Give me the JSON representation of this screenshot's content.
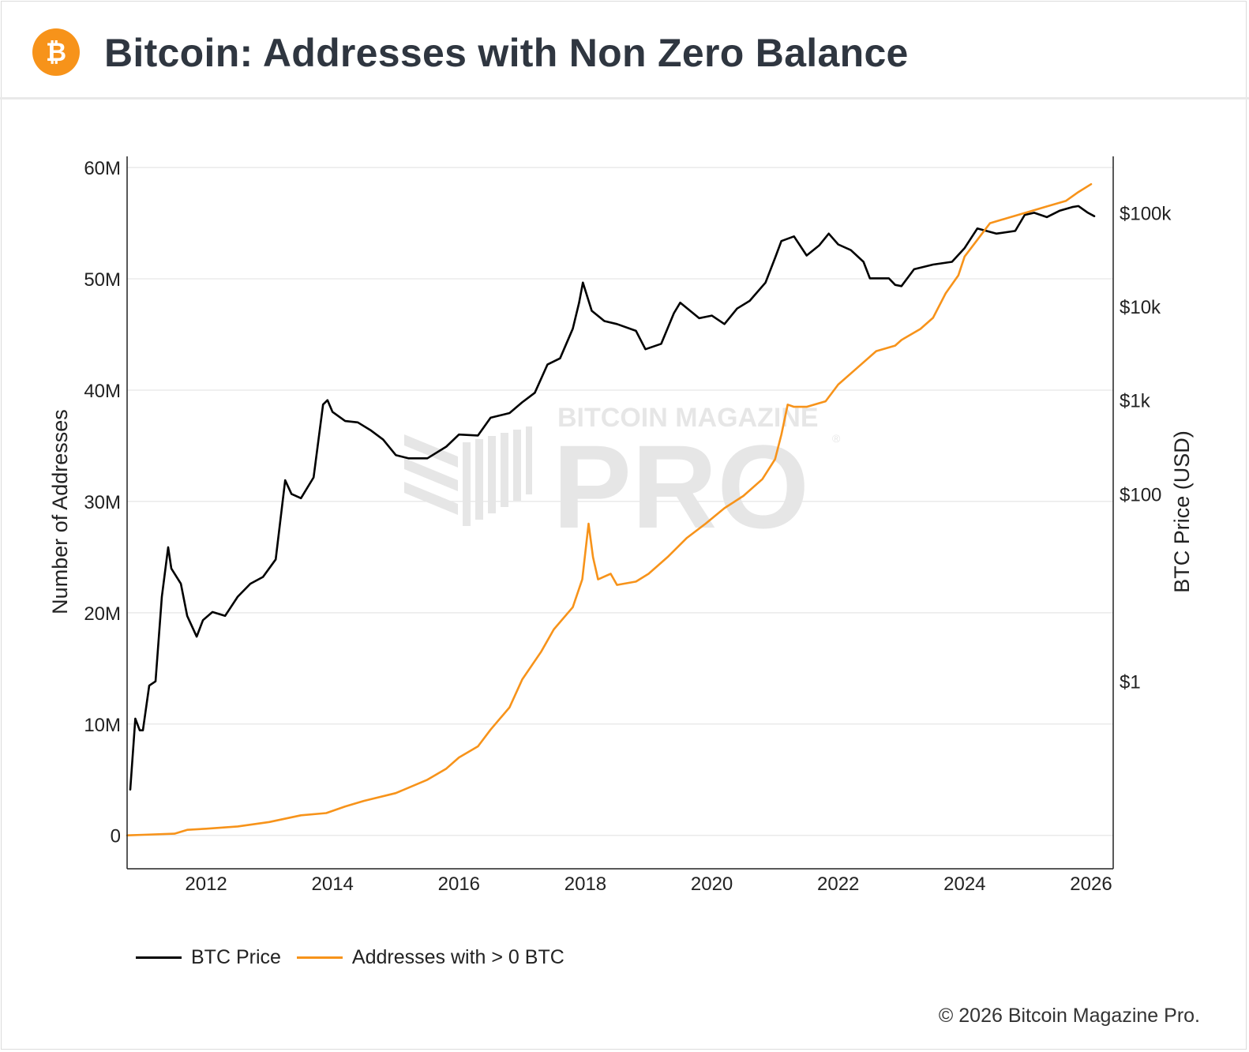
{
  "header": {
    "title": "Bitcoin: Addresses with Non Zero Balance",
    "logo_glyph": "₿",
    "logo_color": "#f7931a"
  },
  "watermark": {
    "line1": "BITCOIN MAGAZINE",
    "line2": "PRO",
    "registered": "®"
  },
  "footer": {
    "copyright": "© 2026 Bitcoin Magazine Pro."
  },
  "legend": [
    {
      "label": "BTC Price",
      "color": "#000000"
    },
    {
      "label": "Addresses with > 0 BTC",
      "color": "#f7931a"
    }
  ],
  "chart_data": {
    "type": "line",
    "title": "Bitcoin: Addresses with Non Zero Balance",
    "xlabel": "",
    "ylabel": "Number of Addresses",
    "y2label": "BTC Price (USD)",
    "x_ticks": [
      "2012",
      "2014",
      "2016",
      "2018",
      "2020",
      "2022",
      "2024",
      "2026"
    ],
    "x_range": [
      2010.75,
      2026.35
    ],
    "ylim": [
      -3000000,
      61000000
    ],
    "y_ticks": [
      0,
      10000000,
      20000000,
      30000000,
      40000000,
      50000000,
      60000000
    ],
    "y_tick_labels": [
      "0",
      "10M",
      "20M",
      "30M",
      "40M",
      "50M",
      "60M"
    ],
    "y2_scale": "log",
    "y2lim": [
      0.01,
      400000
    ],
    "y2_ticks": [
      1,
      100,
      1000,
      10000,
      100000
    ],
    "y2_tick_labels": [
      "$1",
      "$100",
      "$1k",
      "$10k",
      "$100k"
    ],
    "grid": true,
    "legend_position": "bottom-left",
    "series": [
      {
        "name": "BTC Price",
        "axis": "y2",
        "color": "#000000",
        "x": [
          2010.8,
          2010.88,
          2010.95,
          2011.0,
          2011.1,
          2011.2,
          2011.3,
          2011.4,
          2011.45,
          2011.6,
          2011.7,
          2011.85,
          2011.95,
          2012.1,
          2012.3,
          2012.5,
          2012.7,
          2012.9,
          2013.1,
          2013.25,
          2013.35,
          2013.5,
          2013.7,
          2013.85,
          2013.92,
          2014.0,
          2014.2,
          2014.4,
          2014.6,
          2014.8,
          2015.0,
          2015.2,
          2015.5,
          2015.8,
          2016.0,
          2016.3,
          2016.5,
          2016.8,
          2017.0,
          2017.2,
          2017.4,
          2017.6,
          2017.8,
          2017.9,
          2017.96,
          2018.1,
          2018.3,
          2018.5,
          2018.8,
          2018.95,
          2019.2,
          2019.4,
          2019.5,
          2019.8,
          2020.0,
          2020.2,
          2020.4,
          2020.6,
          2020.85,
          2021.0,
          2021.1,
          2021.3,
          2021.5,
          2021.7,
          2021.85,
          2022.0,
          2022.2,
          2022.4,
          2022.5,
          2022.8,
          2022.9,
          2023.0,
          2023.2,
          2023.5,
          2023.8,
          2024.0,
          2024.2,
          2024.5,
          2024.8,
          2024.95,
          2025.1,
          2025.3,
          2025.5,
          2025.7,
          2025.8,
          2025.95,
          2026.05
        ],
        "values": [
          0.07,
          0.4,
          0.3,
          0.3,
          0.9,
          1.0,
          8.0,
          27,
          16,
          11,
          5.0,
          3.0,
          4.5,
          5.5,
          5.0,
          8.0,
          11,
          13,
          20,
          140,
          100,
          90,
          150,
          900,
          1000,
          750,
          600,
          580,
          480,
          380,
          260,
          240,
          240,
          320,
          430,
          420,
          650,
          730,
          950,
          1200,
          2400,
          2800,
          5800,
          11000,
          18000,
          9000,
          7000,
          6500,
          5500,
          3500,
          4000,
          8500,
          11000,
          7500,
          8000,
          6500,
          9500,
          11500,
          18000,
          33000,
          50000,
          56000,
          35000,
          45000,
          60000,
          46000,
          40000,
          30000,
          20000,
          20000,
          17000,
          16500,
          25000,
          28000,
          30000,
          42000,
          68000,
          60000,
          64000,
          95000,
          100000,
          90000,
          105000,
          115000,
          118000,
          100000,
          92000
        ]
      },
      {
        "name": "Addresses with > 0 BTC",
        "axis": "y",
        "color": "#f7931a",
        "x": [
          2010.75,
          2011.0,
          2011.5,
          2011.7,
          2012.0,
          2012.5,
          2013.0,
          2013.5,
          2013.9,
          2014.2,
          2014.5,
          2015.0,
          2015.5,
          2015.8,
          2016.0,
          2016.3,
          2016.5,
          2016.8,
          2017.0,
          2017.3,
          2017.5,
          2017.8,
          2017.95,
          2018.05,
          2018.12,
          2018.2,
          2018.4,
          2018.5,
          2018.8,
          2019.0,
          2019.3,
          2019.6,
          2019.9,
          2020.2,
          2020.5,
          2020.8,
          2021.0,
          2021.1,
          2021.2,
          2021.3,
          2021.5,
          2021.8,
          2022.0,
          2022.3,
          2022.6,
          2022.9,
          2023.0,
          2023.3,
          2023.5,
          2023.7,
          2023.9,
          2024.0,
          2024.2,
          2024.4,
          2024.7,
          2025.0,
          2025.3,
          2025.6,
          2025.8,
          2026.0
        ],
        "values": [
          0,
          50000,
          150000,
          500000,
          600000,
          800000,
          1200000,
          1800000,
          2000000,
          2600000,
          3100000,
          3800000,
          5000000,
          6000000,
          7000000,
          8000000,
          9500000,
          11500000,
          14000000,
          16500000,
          18500000,
          20500000,
          23000000,
          28000000,
          25000000,
          23000000,
          23500000,
          22500000,
          22800000,
          23500000,
          25000000,
          26700000,
          28000000,
          29400000,
          30500000,
          32000000,
          33800000,
          36000000,
          38700000,
          38500000,
          38500000,
          39000000,
          40500000,
          42000000,
          43500000,
          44000000,
          44500000,
          45500000,
          46500000,
          48700000,
          50300000,
          52000000,
          53500000,
          55000000,
          55500000,
          56000000,
          56500000,
          57000000,
          57800000,
          58500000
        ]
      }
    ]
  }
}
